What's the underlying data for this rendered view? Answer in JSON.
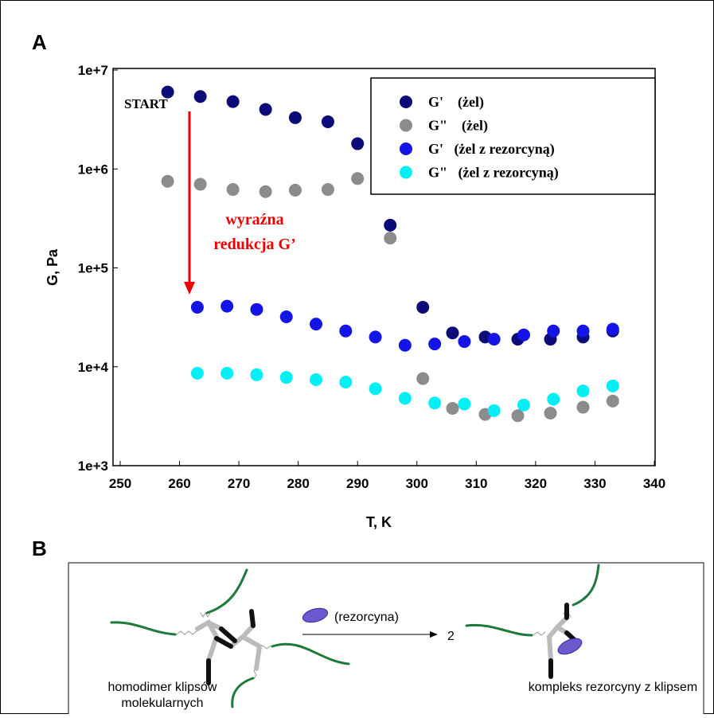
{
  "chart_data": {
    "type": "scatter",
    "xlabel": "T, K",
    "ylabel": "G, Pa",
    "xlim": [
      250,
      340
    ],
    "xticks": [
      250,
      260,
      270,
      280,
      290,
      300,
      310,
      320,
      330,
      340
    ],
    "ylim": [
      1000,
      10000000
    ],
    "log_y": true,
    "yticks": [
      {
        "value": 1000,
        "label": "1e+3"
      },
      {
        "value": 10000,
        "label": "1e+4"
      },
      {
        "value": 100000,
        "label": "1e+5"
      },
      {
        "value": 1000000,
        "label": "1e+6"
      },
      {
        "value": 10000000,
        "label": "1e+7"
      }
    ],
    "legend": "upper right",
    "series": [
      {
        "name": "G'    (żel)",
        "color": "#0c0c78",
        "x": [
          258,
          263.5,
          269,
          274.5,
          279.5,
          285,
          290,
          295.5,
          301,
          306,
          311.5,
          317,
          322.5,
          328,
          333
        ],
        "values": [
          6000000,
          5400000,
          4800000,
          4000000,
          3300000,
          3000000,
          1800000,
          270000,
          40000,
          22000,
          20000,
          19000,
          19000,
          20000,
          23000
        ]
      },
      {
        "name": "G\"    (żel)",
        "color": "#8c8c8c",
        "x": [
          258,
          263.5,
          269,
          274.5,
          279.5,
          285,
          290,
          295.5,
          301,
          306,
          311.5,
          317,
          322.5,
          328,
          333
        ],
        "values": [
          750000,
          700000,
          620000,
          590000,
          610000,
          620000,
          800000,
          200000,
          7600,
          3800,
          3300,
          3200,
          3400,
          3900,
          4500
        ]
      },
      {
        "name": "G'   (żel z rezorcyną)",
        "color": "#1414e6",
        "x": [
          263,
          268,
          273,
          278,
          283,
          288,
          293,
          298,
          303,
          308,
          313,
          318,
          323,
          328,
          333
        ],
        "values": [
          40000,
          41000,
          38000,
          32000,
          27000,
          23000,
          20000,
          16500,
          17000,
          18000,
          19000,
          21000,
          23000,
          23000,
          24000
        ]
      },
      {
        "name": "G\"   (żel z rezorcyną)",
        "color": "#00f0f5",
        "x": [
          263,
          268,
          273,
          278,
          283,
          288,
          293,
          298,
          303,
          308,
          313,
          318,
          323,
          328,
          333
        ],
        "values": [
          8600,
          8600,
          8300,
          7800,
          7400,
          7000,
          6000,
          4800,
          4300,
          4200,
          3600,
          4100,
          4700,
          5700,
          6400
        ]
      }
    ],
    "annotations": [
      "START",
      "wyraźna",
      "redukcja G’"
    ]
  },
  "panel_labels": [
    "A",
    "B"
  ],
  "diagram": {
    "reagent": "(rezorcyna)",
    "coefficient": "2",
    "left_caption": [
      "homodimer klipsów",
      "molekularnych"
    ],
    "right_caption": "kompleks rezorcyny z klipsem"
  }
}
